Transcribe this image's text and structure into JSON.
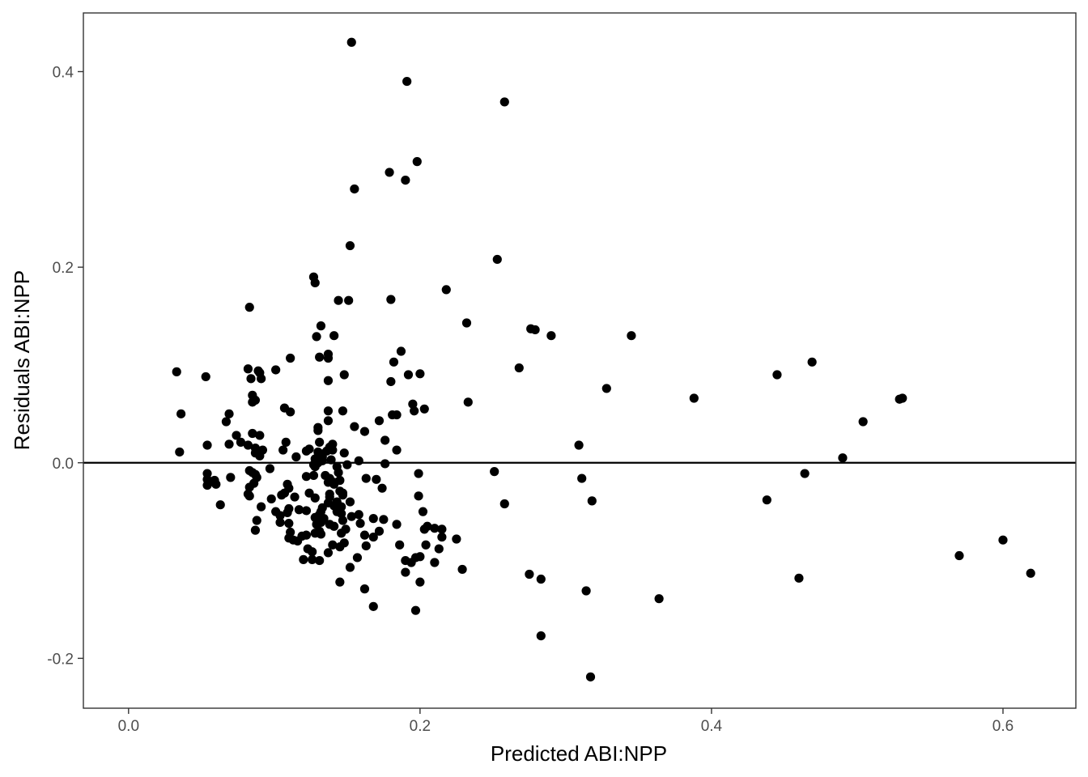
{
  "chart_data": {
    "type": "scatter",
    "xlabel": "Predicted ABI:NPP",
    "ylabel": "Residuals ABI:NPP",
    "xlim": [
      -0.031,
      0.65
    ],
    "ylim": [
      -0.251,
      0.46
    ],
    "x_ticks": [
      {
        "value": 0.0,
        "label": "0.0"
      },
      {
        "value": 0.2,
        "label": "0.2"
      },
      {
        "value": 0.4,
        "label": "0.4"
      },
      {
        "value": 0.6,
        "label": "0.6"
      }
    ],
    "y_ticks": [
      {
        "value": -0.2,
        "label": "-0.2"
      },
      {
        "value": 0.0,
        "label": "0.0"
      },
      {
        "value": 0.2,
        "label": "0.2"
      },
      {
        "value": 0.4,
        "label": "0.4"
      }
    ],
    "reference_line_y": 0,
    "grid": false,
    "colors": {
      "points": "#000000",
      "panel_border": "#333333",
      "tick_text": "#4d4d4d"
    },
    "points": [
      [
        0.153,
        0.43
      ],
      [
        0.191,
        0.39
      ],
      [
        0.258,
        0.369
      ],
      [
        0.198,
        0.308
      ],
      [
        0.179,
        0.297
      ],
      [
        0.19,
        0.289
      ],
      [
        0.155,
        0.28
      ],
      [
        0.152,
        0.222
      ],
      [
        0.253,
        0.208
      ],
      [
        0.127,
        0.19
      ],
      [
        0.128,
        0.184
      ],
      [
        0.218,
        0.177
      ],
      [
        0.18,
        0.167
      ],
      [
        0.151,
        0.166
      ],
      [
        0.144,
        0.166
      ],
      [
        0.083,
        0.159
      ],
      [
        0.232,
        0.143
      ],
      [
        0.132,
        0.14
      ],
      [
        0.276,
        0.137
      ],
      [
        0.279,
        0.136
      ],
      [
        0.345,
        0.13
      ],
      [
        0.29,
        0.13
      ],
      [
        0.141,
        0.13
      ],
      [
        0.129,
        0.129
      ],
      [
        0.187,
        0.114
      ],
      [
        0.137,
        0.111
      ],
      [
        0.111,
        0.107
      ],
      [
        0.131,
        0.108
      ],
      [
        0.137,
        0.107
      ],
      [
        0.182,
        0.103
      ],
      [
        0.469,
        0.103
      ],
      [
        0.268,
        0.097
      ],
      [
        0.033,
        0.093
      ],
      [
        0.082,
        0.096
      ],
      [
        0.101,
        0.095
      ],
      [
        0.089,
        0.094
      ],
      [
        0.09,
        0.092
      ],
      [
        0.192,
        0.09
      ],
      [
        0.2,
        0.091
      ],
      [
        0.148,
        0.09
      ],
      [
        0.445,
        0.09
      ],
      [
        0.053,
        0.088
      ],
      [
        0.084,
        0.086
      ],
      [
        0.091,
        0.086
      ],
      [
        0.137,
        0.084
      ],
      [
        0.18,
        0.083
      ],
      [
        0.328,
        0.076
      ],
      [
        0.085,
        0.069
      ],
      [
        0.388,
        0.066
      ],
      [
        0.529,
        0.065
      ],
      [
        0.531,
        0.066
      ],
      [
        0.087,
        0.064
      ],
      [
        0.233,
        0.062
      ],
      [
        0.085,
        0.062
      ],
      [
        0.195,
        0.06
      ],
      [
        0.107,
        0.056
      ],
      [
        0.203,
        0.055
      ],
      [
        0.111,
        0.052
      ],
      [
        0.137,
        0.053
      ],
      [
        0.147,
        0.053
      ],
      [
        0.196,
        0.053
      ],
      [
        0.181,
        0.049
      ],
      [
        0.184,
        0.049
      ],
      [
        0.036,
        0.05
      ],
      [
        0.069,
        0.05
      ],
      [
        0.137,
        0.043
      ],
      [
        0.172,
        0.043
      ],
      [
        0.504,
        0.042
      ],
      [
        0.067,
        0.042
      ],
      [
        0.155,
        0.037
      ],
      [
        0.13,
        0.033
      ],
      [
        0.13,
        0.036
      ],
      [
        0.162,
        0.032
      ],
      [
        0.085,
        0.03
      ],
      [
        0.09,
        0.028
      ],
      [
        0.074,
        0.028
      ],
      [
        0.176,
        0.023
      ],
      [
        0.077,
        0.021
      ],
      [
        0.108,
        0.021
      ],
      [
        0.069,
        0.019
      ],
      [
        0.131,
        0.021
      ],
      [
        0.082,
        0.018
      ],
      [
        0.14,
        0.019
      ],
      [
        0.054,
        0.018
      ],
      [
        0.309,
        0.018
      ],
      [
        0.087,
        0.015
      ],
      [
        0.138,
        0.016
      ],
      [
        0.124,
        0.014
      ],
      [
        0.106,
        0.013
      ],
      [
        0.092,
        0.013
      ],
      [
        0.122,
        0.012
      ],
      [
        0.184,
        0.013
      ],
      [
        0.14,
        0.013
      ],
      [
        0.035,
        0.011
      ],
      [
        0.087,
        0.01
      ],
      [
        0.13,
        0.011
      ],
      [
        0.136,
        0.012
      ],
      [
        0.133,
        0.009
      ],
      [
        0.148,
        0.01
      ],
      [
        0.115,
        0.006
      ],
      [
        0.09,
        0.007
      ],
      [
        0.133,
        0.006
      ],
      [
        0.128,
        0.004
      ],
      [
        0.49,
        0.005
      ],
      [
        0.139,
        0.003
      ],
      [
        0.158,
        0.002
      ],
      [
        0.133,
        0.002
      ],
      [
        0.13,
        0.0
      ],
      [
        0.176,
        -0.001
      ],
      [
        0.127,
        -0.002
      ],
      [
        0.15,
        -0.002
      ],
      [
        0.143,
        -0.004
      ],
      [
        0.128,
        -0.004
      ],
      [
        0.097,
        -0.006
      ],
      [
        0.083,
        -0.008
      ],
      [
        0.251,
        -0.009
      ],
      [
        0.085,
        -0.01
      ],
      [
        0.144,
        -0.01
      ],
      [
        0.054,
        -0.011
      ],
      [
        0.199,
        -0.011
      ],
      [
        0.087,
        -0.012
      ],
      [
        0.464,
        -0.011
      ],
      [
        0.127,
        -0.013
      ],
      [
        0.135,
        -0.013
      ],
      [
        0.122,
        -0.014
      ],
      [
        0.088,
        -0.015
      ],
      [
        0.138,
        -0.016
      ],
      [
        0.07,
        -0.015
      ],
      [
        0.163,
        -0.016
      ],
      [
        0.311,
        -0.016
      ],
      [
        0.054,
        -0.017
      ],
      [
        0.059,
        -0.018
      ],
      [
        0.17,
        -0.017
      ],
      [
        0.145,
        -0.018
      ],
      [
        0.141,
        -0.02
      ],
      [
        0.055,
        -0.02
      ],
      [
        0.137,
        -0.02
      ],
      [
        0.086,
        -0.021
      ],
      [
        0.06,
        -0.022
      ],
      [
        0.109,
        -0.022
      ],
      [
        0.141,
        -0.022
      ],
      [
        0.054,
        -0.023
      ],
      [
        0.174,
        -0.026
      ],
      [
        0.083,
        -0.025
      ],
      [
        0.11,
        -0.026
      ],
      [
        0.145,
        -0.029
      ],
      [
        0.124,
        -0.031
      ],
      [
        0.107,
        -0.031
      ],
      [
        0.147,
        -0.031
      ],
      [
        0.082,
        -0.032
      ],
      [
        0.138,
        -0.032
      ],
      [
        0.147,
        -0.033
      ],
      [
        0.105,
        -0.033
      ],
      [
        0.199,
        -0.034
      ],
      [
        0.083,
        -0.034
      ],
      [
        0.114,
        -0.035
      ],
      [
        0.138,
        -0.035
      ],
      [
        0.128,
        -0.036
      ],
      [
        0.098,
        -0.037
      ],
      [
        0.438,
        -0.038
      ],
      [
        0.318,
        -0.039
      ],
      [
        0.152,
        -0.04
      ],
      [
        0.143,
        -0.04
      ],
      [
        0.137,
        -0.041
      ],
      [
        0.258,
        -0.042
      ],
      [
        0.063,
        -0.043
      ],
      [
        0.141,
        -0.044
      ],
      [
        0.146,
        -0.045
      ],
      [
        0.091,
        -0.045
      ],
      [
        0.133,
        -0.046
      ],
      [
        0.11,
        -0.047
      ],
      [
        0.117,
        -0.048
      ],
      [
        0.122,
        -0.049
      ],
      [
        0.132,
        -0.05
      ],
      [
        0.101,
        -0.05
      ],
      [
        0.202,
        -0.05
      ],
      [
        0.109,
        -0.051
      ],
      [
        0.143,
        -0.05
      ],
      [
        0.146,
        -0.052
      ],
      [
        0.131,
        -0.053
      ],
      [
        0.158,
        -0.053
      ],
      [
        0.104,
        -0.054
      ],
      [
        0.153,
        -0.055
      ],
      [
        0.128,
        -0.056
      ],
      [
        0.134,
        -0.057
      ],
      [
        0.168,
        -0.057
      ],
      [
        0.175,
        -0.058
      ],
      [
        0.088,
        -0.059
      ],
      [
        0.147,
        -0.059
      ],
      [
        0.132,
        -0.061
      ],
      [
        0.104,
        -0.061
      ],
      [
        0.11,
        -0.062
      ],
      [
        0.159,
        -0.062
      ],
      [
        0.129,
        -0.063
      ],
      [
        0.138,
        -0.063
      ],
      [
        0.184,
        -0.063
      ],
      [
        0.141,
        -0.065
      ],
      [
        0.205,
        -0.065
      ],
      [
        0.203,
        -0.068
      ],
      [
        0.21,
        -0.067
      ],
      [
        0.149,
        -0.068
      ],
      [
        0.215,
        -0.068
      ],
      [
        0.087,
        -0.069
      ],
      [
        0.131,
        -0.07
      ],
      [
        0.172,
        -0.07
      ],
      [
        0.111,
        -0.071
      ],
      [
        0.128,
        -0.072
      ],
      [
        0.146,
        -0.072
      ],
      [
        0.132,
        -0.073
      ],
      [
        0.162,
        -0.074
      ],
      [
        0.122,
        -0.074
      ],
      [
        0.119,
        -0.075
      ],
      [
        0.168,
        -0.076
      ],
      [
        0.215,
        -0.076
      ],
      [
        0.11,
        -0.077
      ],
      [
        0.225,
        -0.078
      ],
      [
        0.6,
        -0.079
      ],
      [
        0.113,
        -0.079
      ],
      [
        0.116,
        -0.08
      ],
      [
        0.148,
        -0.082
      ],
      [
        0.14,
        -0.084
      ],
      [
        0.186,
        -0.084
      ],
      [
        0.163,
        -0.085
      ],
      [
        0.145,
        -0.086
      ],
      [
        0.204,
        -0.084
      ],
      [
        0.123,
        -0.088
      ],
      [
        0.213,
        -0.088
      ],
      [
        0.126,
        -0.091
      ],
      [
        0.137,
        -0.092
      ],
      [
        0.2,
        -0.096
      ],
      [
        0.57,
        -0.095
      ],
      [
        0.197,
        -0.097
      ],
      [
        0.157,
        -0.097
      ],
      [
        0.12,
        -0.099
      ],
      [
        0.126,
        -0.099
      ],
      [
        0.131,
        -0.1
      ],
      [
        0.19,
        -0.1
      ],
      [
        0.194,
        -0.102
      ],
      [
        0.21,
        -0.102
      ],
      [
        0.152,
        -0.107
      ],
      [
        0.229,
        -0.109
      ],
      [
        0.19,
        -0.112
      ],
      [
        0.275,
        -0.114
      ],
      [
        0.619,
        -0.113
      ],
      [
        0.46,
        -0.118
      ],
      [
        0.283,
        -0.119
      ],
      [
        0.145,
        -0.122
      ],
      [
        0.2,
        -0.122
      ],
      [
        0.162,
        -0.129
      ],
      [
        0.314,
        -0.131
      ],
      [
        0.364,
        -0.139
      ],
      [
        0.168,
        -0.147
      ],
      [
        0.197,
        -0.151
      ],
      [
        0.283,
        -0.177
      ],
      [
        0.317,
        -0.219
      ]
    ]
  }
}
